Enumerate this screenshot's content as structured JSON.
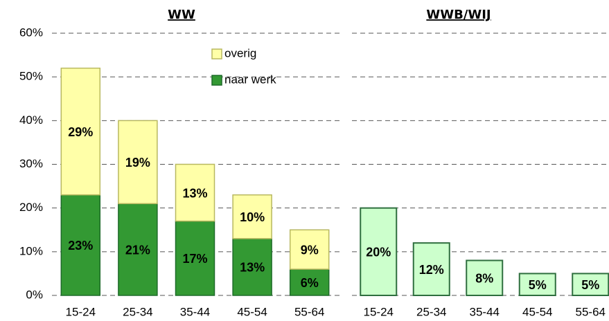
{
  "chart_data": [
    {
      "type": "stacked-bar",
      "title": "WW",
      "categories": [
        "15-24",
        "25-34",
        "35-44",
        "45-54",
        "55-64"
      ],
      "series": [
        {
          "name": "naar werk",
          "color": "#339933",
          "values": [
            23,
            21,
            17,
            13,
            6
          ],
          "value_labels": [
            "23%",
            "21%",
            "17%",
            "13%",
            "6%"
          ]
        },
        {
          "name": "overig",
          "color": "#ffffa8",
          "values": [
            29,
            19,
            13,
            10,
            9
          ],
          "value_labels": [
            "29%",
            "19%",
            "13%",
            "10%",
            "9%"
          ]
        }
      ],
      "ylim": [
        0,
        60
      ],
      "yticks": [
        {
          "value": 0,
          "label": "0%"
        },
        {
          "value": 10,
          "label": "10%"
        },
        {
          "value": 20,
          "label": "20%"
        },
        {
          "value": 30,
          "label": "30%"
        },
        {
          "value": 40,
          "label": "40%"
        },
        {
          "value": 50,
          "label": "50%"
        },
        {
          "value": 60,
          "label": "60%"
        }
      ],
      "grid": true,
      "legend": "top-right"
    },
    {
      "type": "bar",
      "title": "WWB/WIJ",
      "categories": [
        "15-24",
        "25-34",
        "35-44",
        "45-54",
        "55-64"
      ],
      "values": [
        20,
        12,
        8,
        5,
        5
      ],
      "value_labels": [
        "20%",
        "12%",
        "8%",
        "5%",
        "5%"
      ],
      "color": "#ccffcc",
      "ylim": [
        0,
        60
      ],
      "grid": true
    }
  ]
}
